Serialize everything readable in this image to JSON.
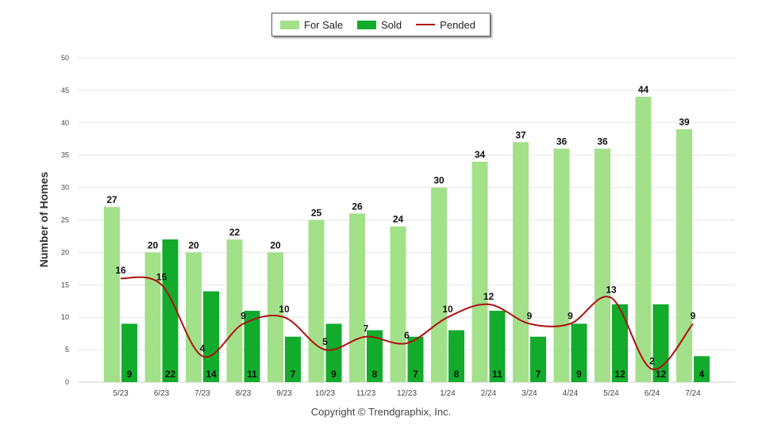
{
  "legend": {
    "for_sale": "For Sale",
    "sold": "Sold",
    "pended": "Pended"
  },
  "copyright": "Copyright © Trendgraphix, Inc.",
  "colors": {
    "for_sale": "#a3e08a",
    "sold": "#12ab2c",
    "pended": "#b01010",
    "grid": "#e6e6e6"
  },
  "chart_data": {
    "type": "bar",
    "title": "",
    "xlabel": "",
    "ylabel": "Number of Homes",
    "ylim": [
      0,
      50
    ],
    "yticks": [
      0,
      5,
      10,
      15,
      20,
      25,
      30,
      35,
      40,
      45,
      50
    ],
    "grid": true,
    "legend_position": "top-center",
    "categories": [
      "5/23",
      "6/23",
      "7/23",
      "8/23",
      "9/23",
      "10/23",
      "11/23",
      "12/23",
      "1/24",
      "2/24",
      "3/24",
      "4/24",
      "5/24",
      "6/24",
      "7/24"
    ],
    "series": [
      {
        "name": "For Sale",
        "type": "bar",
        "values": [
          27,
          20,
          20,
          22,
          20,
          25,
          26,
          24,
          30,
          34,
          37,
          36,
          36,
          44,
          39
        ]
      },
      {
        "name": "Sold",
        "type": "bar",
        "values": [
          9,
          22,
          14,
          11,
          7,
          9,
          8,
          7,
          8,
          11,
          7,
          9,
          12,
          12,
          4
        ]
      },
      {
        "name": "Pended",
        "type": "line",
        "values": [
          16,
          15,
          4,
          9,
          10,
          5,
          7,
          6,
          10,
          12,
          9,
          9,
          13,
          2,
          9
        ]
      }
    ]
  }
}
